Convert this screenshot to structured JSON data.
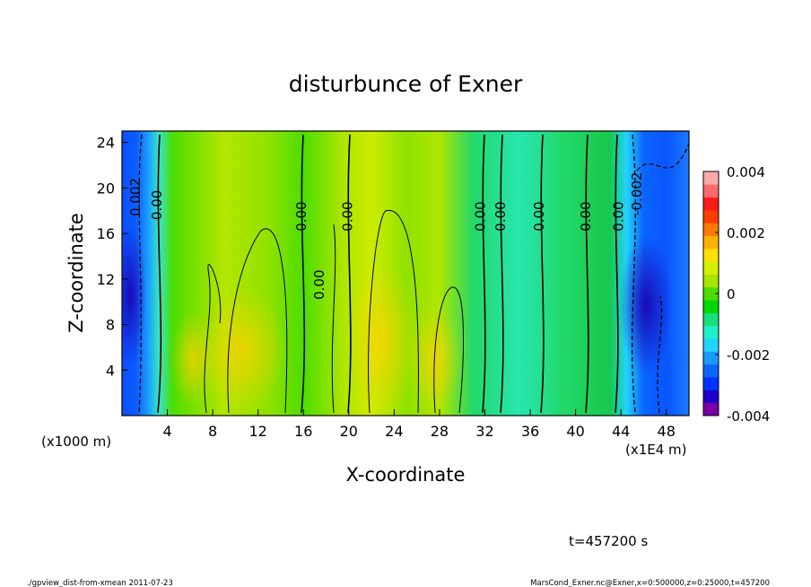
{
  "chart_data": {
    "type": "heatmap",
    "title": "disturbunce of Exner",
    "xlabel": "X-coordinate",
    "ylabel": "Z-coordinate",
    "x_unit_label": "(x1000 m)",
    "x_scale_label": "(x1E4 m)",
    "xlim": [
      0,
      50
    ],
    "ylim": [
      0,
      25
    ],
    "x_ticks": [
      4,
      8,
      12,
      16,
      20,
      24,
      28,
      32,
      36,
      40,
      44,
      48
    ],
    "y_ticks": [
      4,
      8,
      12,
      16,
      20,
      24
    ],
    "colorbar": {
      "range": [
        -0.004,
        0.004
      ],
      "tick_values": [
        0.004,
        0.002,
        0,
        -0.002,
        -0.004
      ],
      "tick_labels": [
        "0.004",
        "0.002",
        "0",
        "-0.002",
        "-0.004"
      ],
      "colors": [
        "#7a00a6",
        "#1f00c8",
        "#0033ff",
        "#0a66ff",
        "#1a99ff",
        "#22d3ff",
        "#1ff0c8",
        "#17e07a",
        "#00d700",
        "#4ddd00",
        "#a6e600",
        "#d6ee00",
        "#ffe000",
        "#ffb000",
        "#ff7800",
        "#ff3c00",
        "#ff1a1a",
        "#ff6a6a",
        "#ffaaaa"
      ]
    },
    "contour_labels": [
      {
        "text": "0.002",
        "x": 1.6,
        "z": 19.2
      },
      {
        "text": "0.00",
        "x": 3.5,
        "z": 18.5
      },
      {
        "text": "0.00",
        "x": 16.2,
        "z": 17.5
      },
      {
        "text": "0.00",
        "x": 17.8,
        "z": 11.5
      },
      {
        "text": "0.00",
        "x": 20.3,
        "z": 17.5
      },
      {
        "text": "0.00",
        "x": 32.0,
        "z": 17.5
      },
      {
        "text": "0.00",
        "x": 33.8,
        "z": 17.5
      },
      {
        "text": "0.00",
        "x": 37.2,
        "z": 17.5
      },
      {
        "text": "0.00",
        "x": 41.3,
        "z": 17.5
      },
      {
        "text": "0.00",
        "x": 44.2,
        "z": 17.5
      },
      {
        "text": "-0.002",
        "x": 45.8,
        "z": 19.5
      }
    ]
  },
  "time_label": "t=457200 s",
  "footer": {
    "left": "./gpview_dist-from-xmean   2011-07-23",
    "right": "MarsCond_Exner.nc@Exner,x=0:500000,z=0:25000,t=457200"
  }
}
